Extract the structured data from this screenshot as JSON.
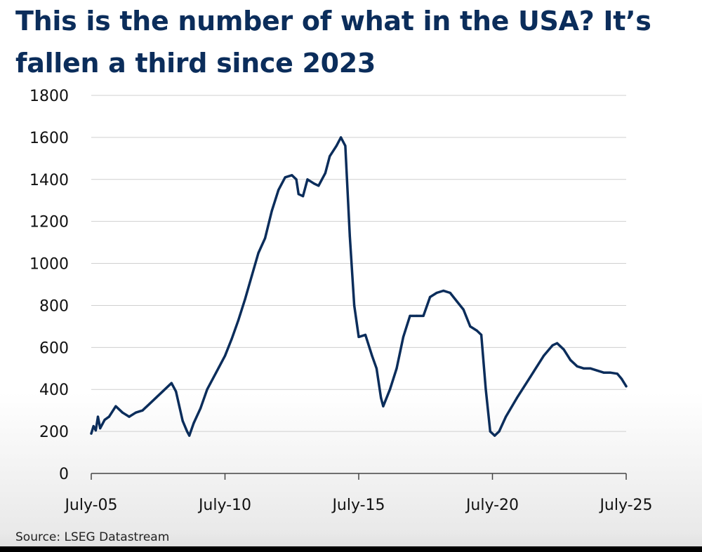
{
  "title": "This is the number of what in the USA? It’s fallen a third since 2023",
  "source": "Source: LSEG Datastream",
  "colors": {
    "line": "#0b2d5b",
    "title": "#0b2d5b",
    "grid": "#cfcfcf",
    "axis": "#444444"
  },
  "chart_data": {
    "type": "line",
    "title": "This is the number of what in the USA? It’s fallen a third since 2023",
    "xlabel": "",
    "ylabel": "",
    "ylim": [
      0,
      1800
    ],
    "y_ticks": [
      0,
      200,
      400,
      600,
      800,
      1000,
      1200,
      1400,
      1600,
      1800
    ],
    "xlim": [
      "2005-07",
      "2025-07"
    ],
    "x_ticks": [
      {
        "date": "2005-07",
        "label": "July-05"
      },
      {
        "date": "2010-07",
        "label": "July-10"
      },
      {
        "date": "2015-07",
        "label": "July-15"
      },
      {
        "date": "2020-07",
        "label": "July-20"
      },
      {
        "date": "2025-07",
        "label": "July-25"
      }
    ],
    "grid": "horizontal",
    "series": [
      {
        "values": [
          [
            "2005-07",
            190
          ],
          [
            "2005-08",
            225
          ],
          [
            "2005-09",
            205
          ],
          [
            "2005-10",
            270
          ],
          [
            "2005-11",
            215
          ],
          [
            "2006-01",
            255
          ],
          [
            "2006-03",
            270
          ],
          [
            "2006-06",
            320
          ],
          [
            "2006-09",
            290
          ],
          [
            "2006-12",
            270
          ],
          [
            "2007-03",
            290
          ],
          [
            "2007-06",
            300
          ],
          [
            "2007-09",
            330
          ],
          [
            "2007-12",
            360
          ],
          [
            "2008-03",
            390
          ],
          [
            "2008-06",
            420
          ],
          [
            "2008-07",
            430
          ],
          [
            "2008-09",
            390
          ],
          [
            "2008-12",
            250
          ],
          [
            "2009-02",
            200
          ],
          [
            "2009-03",
            180
          ],
          [
            "2009-05",
            240
          ],
          [
            "2009-08",
            310
          ],
          [
            "2009-11",
            400
          ],
          [
            "2010-03",
            480
          ],
          [
            "2010-07",
            560
          ],
          [
            "2010-10",
            640
          ],
          [
            "2011-01",
            730
          ],
          [
            "2011-04",
            830
          ],
          [
            "2011-07",
            940
          ],
          [
            "2011-10",
            1050
          ],
          [
            "2012-01",
            1120
          ],
          [
            "2012-04",
            1250
          ],
          [
            "2012-07",
            1350
          ],
          [
            "2012-10",
            1410
          ],
          [
            "2013-01",
            1420
          ],
          [
            "2013-03",
            1400
          ],
          [
            "2013-04",
            1330
          ],
          [
            "2013-06",
            1320
          ],
          [
            "2013-08",
            1400
          ],
          [
            "2013-11",
            1380
          ],
          [
            "2014-01",
            1370
          ],
          [
            "2014-04",
            1430
          ],
          [
            "2014-06",
            1510
          ],
          [
            "2014-09",
            1560
          ],
          [
            "2014-11",
            1600
          ],
          [
            "2015-01",
            1560
          ],
          [
            "2015-03",
            1130
          ],
          [
            "2015-05",
            800
          ],
          [
            "2015-07",
            650
          ],
          [
            "2015-10",
            660
          ],
          [
            "2016-01",
            560
          ],
          [
            "2016-03",
            500
          ],
          [
            "2016-05",
            360
          ],
          [
            "2016-06",
            320
          ],
          [
            "2016-09",
            400
          ],
          [
            "2016-12",
            500
          ],
          [
            "2017-03",
            650
          ],
          [
            "2017-06",
            750
          ],
          [
            "2017-09",
            750
          ],
          [
            "2017-12",
            750
          ],
          [
            "2018-03",
            840
          ],
          [
            "2018-06",
            860
          ],
          [
            "2018-09",
            870
          ],
          [
            "2018-12",
            860
          ],
          [
            "2019-03",
            820
          ],
          [
            "2019-06",
            780
          ],
          [
            "2019-09",
            700
          ],
          [
            "2019-12",
            680
          ],
          [
            "2020-02",
            660
          ],
          [
            "2020-04",
            400
          ],
          [
            "2020-06",
            200
          ],
          [
            "2020-08",
            180
          ],
          [
            "2020-10",
            200
          ],
          [
            "2021-01",
            270
          ],
          [
            "2021-06",
            360
          ],
          [
            "2021-12",
            460
          ],
          [
            "2022-06",
            560
          ],
          [
            "2022-10",
            610
          ],
          [
            "2022-12",
            620
          ],
          [
            "2023-03",
            590
          ],
          [
            "2023-06",
            540
          ],
          [
            "2023-09",
            510
          ],
          [
            "2023-12",
            500
          ],
          [
            "2024-03",
            500
          ],
          [
            "2024-06",
            490
          ],
          [
            "2024-09",
            480
          ],
          [
            "2024-12",
            480
          ],
          [
            "2025-03",
            475
          ],
          [
            "2025-05",
            450
          ],
          [
            "2025-07",
            415
          ]
        ]
      }
    ]
  }
}
